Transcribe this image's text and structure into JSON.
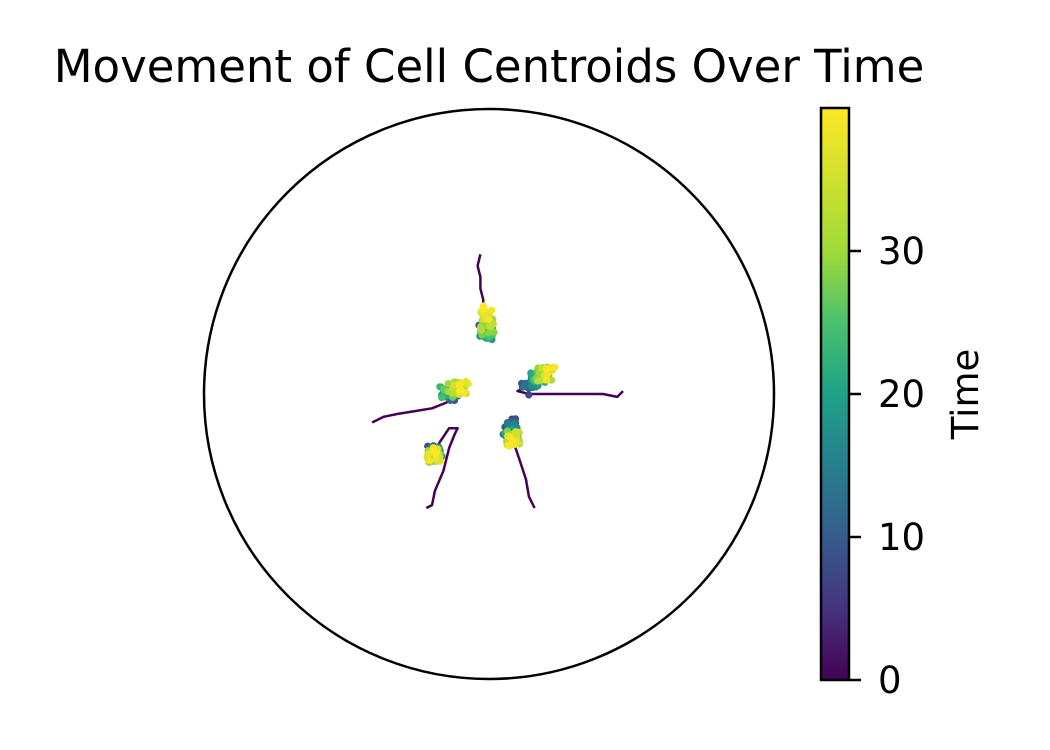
{
  "chart_data": {
    "type": "scatter",
    "title": "Movement of Cell Centroids Over Time",
    "xlabel": "",
    "ylabel": "",
    "xlim": [
      -1,
      1
    ],
    "ylim": [
      -1,
      1
    ],
    "grid": false,
    "boundary": "circle",
    "colormap": "viridis",
    "colorbar": {
      "label": "Time",
      "range": [
        0,
        40
      ],
      "ticks": [
        0,
        10,
        20,
        30
      ],
      "tick_labels": [
        "0",
        "10",
        "20",
        "30"
      ]
    },
    "series": [
      {
        "path": [
          [
            -0.03,
            0.49
          ],
          [
            -0.04,
            0.45
          ],
          [
            -0.03,
            0.41
          ],
          [
            -0.03,
            0.37
          ],
          [
            -0.02,
            0.33
          ],
          [
            -0.02,
            0.29
          ],
          [
            -0.01,
            0.26
          ],
          [
            0.0,
            0.23
          ],
          [
            -0.01,
            0.22
          ]
        ],
        "cluster_center": [
          -0.01,
          0.21
        ],
        "end": [
          0.0,
          0.29
        ],
        "cluster_start": 8
      },
      {
        "path": [
          [
            0.47,
            0.01
          ],
          [
            0.45,
            -0.01
          ],
          [
            0.4,
            0.0
          ],
          [
            0.34,
            0.0
          ],
          [
            0.27,
            0.0
          ],
          [
            0.2,
            0.0
          ],
          [
            0.14,
            0.0
          ],
          [
            0.1,
            0.01
          ],
          [
            0.12,
            0.02
          ]
        ],
        "cluster_center": [
          0.18,
          0.07
        ],
        "end": [
          0.21,
          0.07
        ],
        "cluster_start": 8
      },
      {
        "path": [
          [
            0.16,
            -0.4
          ],
          [
            0.14,
            -0.36
          ],
          [
            0.13,
            -0.3
          ],
          [
            0.11,
            -0.24
          ],
          [
            0.09,
            -0.18
          ],
          [
            0.08,
            -0.13
          ],
          [
            0.07,
            -0.1
          ]
        ],
        "cluster_center": [
          0.08,
          -0.15
        ],
        "end": [
          0.09,
          -0.16
        ],
        "cluster_start": 7
      },
      {
        "path": [
          [
            -0.22,
            -0.4
          ],
          [
            -0.2,
            -0.39
          ],
          [
            -0.19,
            -0.34
          ],
          [
            -0.16,
            -0.27
          ],
          [
            -0.14,
            -0.19
          ],
          [
            -0.12,
            -0.14
          ],
          [
            -0.11,
            -0.12
          ],
          [
            -0.14,
            -0.12
          ],
          [
            -0.18,
            -0.18
          ],
          [
            -0.19,
            -0.2
          ]
        ],
        "cluster_center": [
          -0.19,
          -0.22
        ],
        "end": [
          -0.2,
          -0.21
        ],
        "cluster_start": 9
      },
      {
        "path": [
          [
            -0.41,
            -0.1
          ],
          [
            -0.37,
            -0.08
          ],
          [
            -0.32,
            -0.07
          ],
          [
            -0.26,
            -0.06
          ],
          [
            -0.2,
            -0.05
          ],
          [
            -0.15,
            -0.03
          ],
          [
            -0.12,
            -0.01
          ],
          [
            -0.08,
            0.0
          ],
          [
            -0.1,
            0.02
          ],
          [
            -0.13,
            0.0
          ]
        ],
        "cluster_center": [
          -0.15,
          0.01
        ],
        "end": [
          -0.08,
          0.03
        ],
        "cluster_start": 9
      }
    ]
  }
}
